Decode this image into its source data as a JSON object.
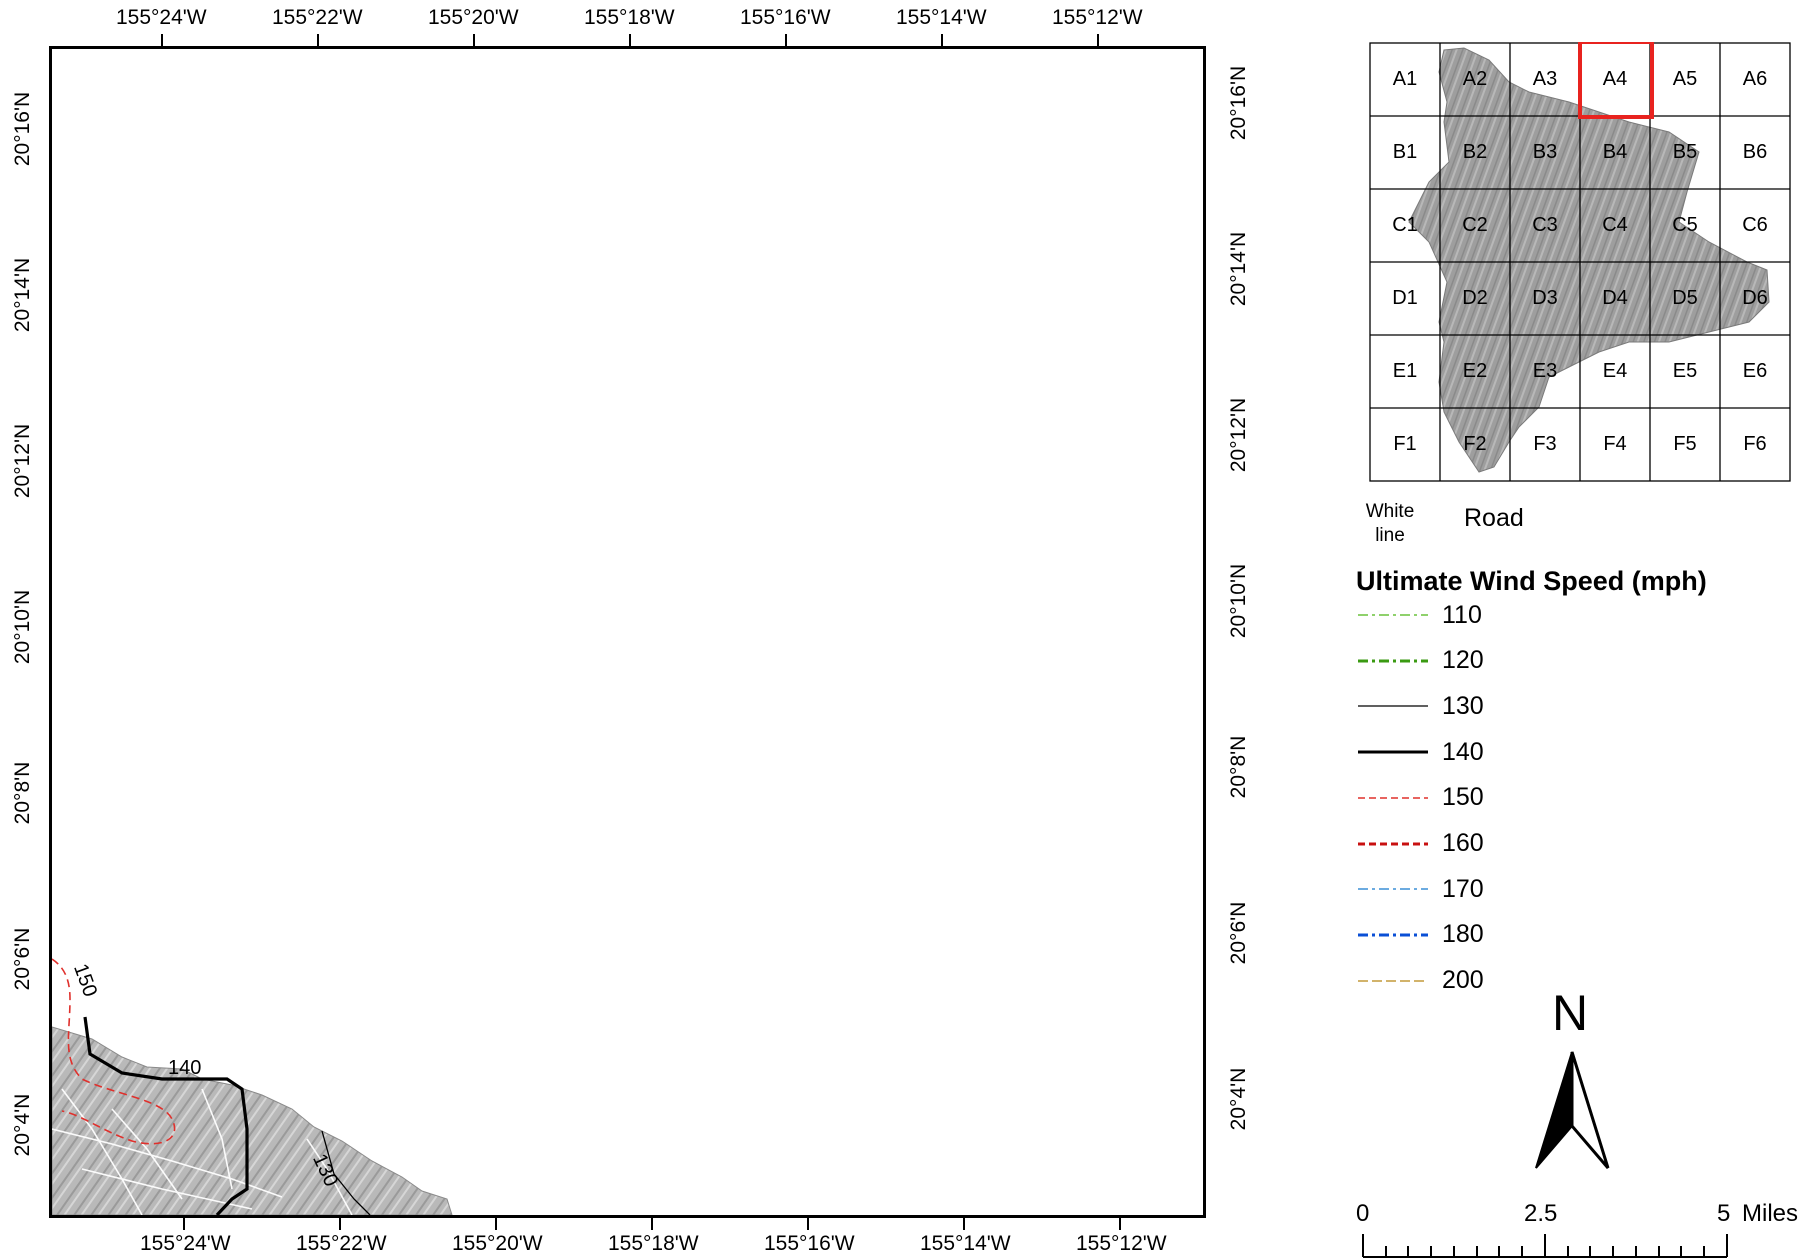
{
  "top_axis_labels": [
    "155°24'W",
    "155°22'W",
    "155°20'W",
    "155°18'W",
    "155°16'W",
    "155°14'W",
    "155°12'W"
  ],
  "bottom_axis_labels": [
    "155°24'W",
    "155°22'W",
    "155°20'W",
    "155°18'W",
    "155°16'W",
    "155°14'W",
    "155°12'W"
  ],
  "left_axis_labels": [
    "20°16'N",
    "20°14'N",
    "20°12'N",
    "20°10'N",
    "20°8'N",
    "20°6'N",
    "20°4'N"
  ],
  "right_axis_labels": [
    "20°16'N",
    "20°14'N",
    "20°12'N",
    "20°10'N",
    "20°8'N",
    "20°6'N",
    "20°4'N"
  ],
  "contour_labels": {
    "c150": "150",
    "c140": "140",
    "c130": "130"
  },
  "index_grid": {
    "rows": [
      [
        "A1",
        "A2",
        "A3",
        "A4",
        "A5",
        "A6"
      ],
      [
        "B1",
        "B2",
        "B3",
        "B4",
        "B5",
        "B6"
      ],
      [
        "C1",
        "C2",
        "C3",
        "C4",
        "C5",
        "C6"
      ],
      [
        "D1",
        "D2",
        "D3",
        "D4",
        "D5",
        "D6"
      ],
      [
        "E1",
        "E2",
        "E3",
        "E4",
        "E5",
        "E6"
      ],
      [
        "F1",
        "F2",
        "F3",
        "F4",
        "F5",
        "F6"
      ]
    ],
    "highlighted": "A4",
    "highlight_color": "#e8231f"
  },
  "road_legend": {
    "white_line_1": "White",
    "white_line_2": "line",
    "road": "Road"
  },
  "wind_legend": {
    "title": "Ultimate Wind Speed (mph)",
    "items": [
      {
        "label": "110",
        "color": "#6ac23c"
      },
      {
        "label": "120",
        "color": "#3a9a12"
      },
      {
        "label": "130",
        "color": "#000000"
      },
      {
        "label": "140",
        "color": "#000000"
      },
      {
        "label": "150",
        "color": "#e0302c"
      },
      {
        "label": "160",
        "color": "#c81010"
      },
      {
        "label": "170",
        "color": "#3b8fd6"
      },
      {
        "label": "180",
        "color": "#0a4fd6"
      },
      {
        "label": "200",
        "color": "#c49a3a"
      }
    ]
  },
  "north_arrow": {
    "letter": "N"
  },
  "scale_bar": {
    "labels": [
      "0",
      "2.5",
      "5"
    ],
    "units": "Miles"
  }
}
